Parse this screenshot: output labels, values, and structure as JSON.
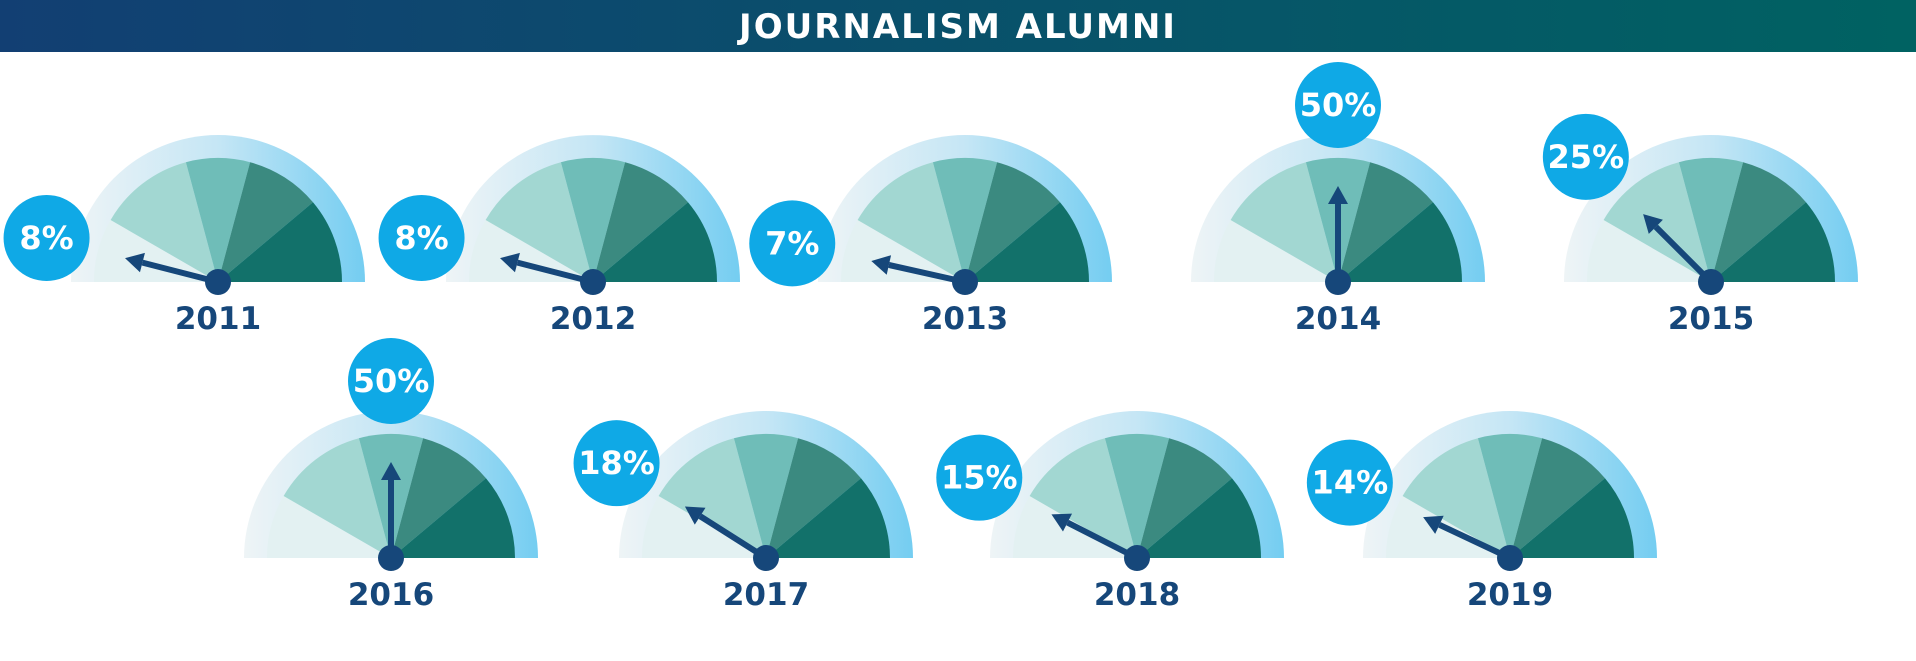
{
  "chart_data": {
    "type": "gauge",
    "title": "JOURNALISM ALUMNI",
    "categories": [
      "2011",
      "2012",
      "2013",
      "2014",
      "2015",
      "2016",
      "2017",
      "2018",
      "2019"
    ],
    "values": [
      8,
      8,
      7,
      50,
      25,
      50,
      18,
      15,
      14
    ],
    "value_labels": [
      "8%",
      "8%",
      "7%",
      "50%",
      "25%",
      "50%",
      "18%",
      "15%",
      "14%"
    ],
    "ylim": [
      0,
      100
    ],
    "color": "#0fa9e6"
  }
}
